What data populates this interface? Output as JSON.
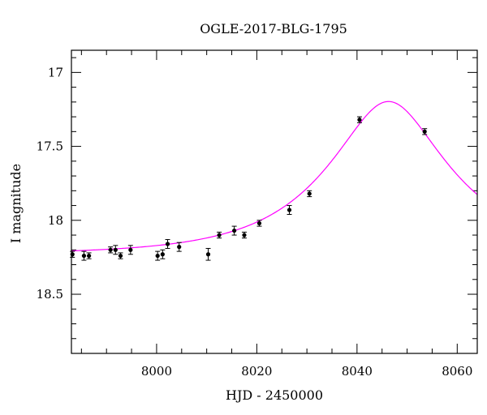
{
  "chart_data": {
    "type": "scatter",
    "title": "OGLE-2017-BLG-1795",
    "xlabel": "HJD - 2450000",
    "ylabel": "I magnitude",
    "xlim": [
      7983,
      8064
    ],
    "ylim": [
      18.9,
      16.85
    ],
    "y_inverted": true,
    "x_ticks": [
      8000,
      8020,
      8040,
      8060
    ],
    "x_tick_labels": [
      "8000",
      "8020",
      "8040",
      "8060"
    ],
    "y_ticks": [
      17,
      17.5,
      18,
      18.5
    ],
    "y_tick_labels": [
      "17",
      "17.5",
      "18",
      "18.5"
    ],
    "x_minor_step": 5,
    "y_minor_step": 0.1,
    "grid": false,
    "series": [
      {
        "kind": "points_with_errors",
        "color": "#000000",
        "points": [
          {
            "x": 7983.2,
            "y": 18.23,
            "err": 0.02
          },
          {
            "x": 7985.5,
            "y": 18.24,
            "err": 0.03
          },
          {
            "x": 7986.5,
            "y": 18.24,
            "err": 0.02
          },
          {
            "x": 7990.8,
            "y": 18.2,
            "err": 0.02
          },
          {
            "x": 7991.8,
            "y": 18.2,
            "err": 0.03
          },
          {
            "x": 7992.8,
            "y": 18.24,
            "err": 0.02
          },
          {
            "x": 7994.8,
            "y": 18.2,
            "err": 0.03
          },
          {
            "x": 8000.2,
            "y": 18.24,
            "err": 0.03
          },
          {
            "x": 8001.2,
            "y": 18.23,
            "err": 0.03
          },
          {
            "x": 8002.2,
            "y": 18.16,
            "err": 0.03
          },
          {
            "x": 8004.5,
            "y": 18.18,
            "err": 0.03
          },
          {
            "x": 8010.3,
            "y": 18.23,
            "err": 0.04
          },
          {
            "x": 8012.5,
            "y": 18.1,
            "err": 0.02
          },
          {
            "x": 8015.5,
            "y": 18.07,
            "err": 0.03
          },
          {
            "x": 8017.5,
            "y": 18.1,
            "err": 0.02
          },
          {
            "x": 8020.5,
            "y": 18.02,
            "err": 0.02
          },
          {
            "x": 8026.5,
            "y": 17.93,
            "err": 0.03
          },
          {
            "x": 8030.5,
            "y": 17.82,
            "err": 0.02
          },
          {
            "x": 8040.5,
            "y": 17.32,
            "err": 0.02
          },
          {
            "x": 8053.5,
            "y": 17.4,
            "err": 0.02
          }
        ]
      },
      {
        "kind": "model_curve",
        "color": "#ff00ff",
        "model": {
          "t0": 8046.3,
          "tE": 23.0,
          "u0": 0.41,
          "baseline": 18.23,
          "range": [
            7983,
            8064
          ]
        }
      }
    ]
  }
}
